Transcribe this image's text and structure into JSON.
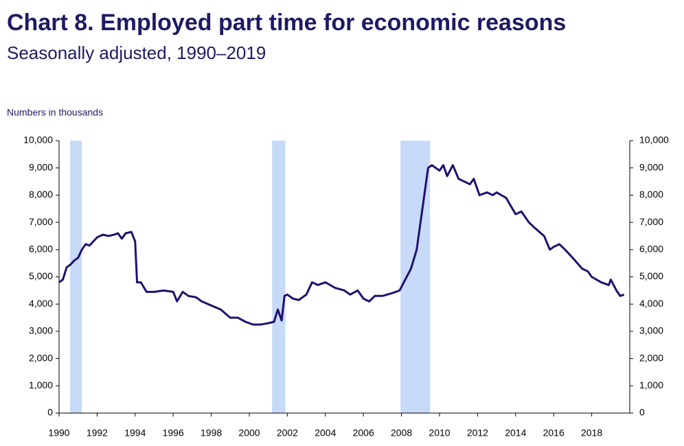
{
  "chart_data": {
    "type": "line",
    "title": "Chart 8. Employed part time for economic reasons",
    "subtitle": "Seasonally adjusted, 1990–2019",
    "y_label": "Numbers in thousands",
    "xlim": [
      1990,
      2020
    ],
    "xticks": [
      1990,
      1992,
      1994,
      1996,
      1998,
      2000,
      2002,
      2004,
      2006,
      2008,
      2010,
      2012,
      2014,
      2016,
      2018
    ],
    "ylim": [
      0,
      10000
    ],
    "yticks": [
      0,
      {
        "value": 1000,
        "label": "1,000"
      },
      {
        "value": 2000,
        "label": "2,000"
      },
      {
        "value": 3000,
        "label": "3,000"
      },
      {
        "value": 4000,
        "label": "4,000"
      },
      {
        "value": 5000,
        "label": "5,000"
      },
      {
        "value": 6000,
        "label": "6,000"
      },
      {
        "value": 7000,
        "label": "7,000"
      },
      {
        "value": 8000,
        "label": "8,000"
      },
      {
        "value": 9000,
        "label": "9,000"
      },
      {
        "value": 10000,
        "label": "10,000"
      }
    ],
    "y2lim": [
      0,
      10000
    ],
    "y2ticks": [
      0,
      {
        "value": 1000,
        "label": "1,000"
      },
      {
        "value": 2000,
        "label": "2,000"
      },
      {
        "value": 3000,
        "label": "3,000"
      },
      {
        "value": 4000,
        "label": "4,000"
      },
      {
        "value": 5000,
        "label": "5,000"
      },
      {
        "value": 6000,
        "label": "6,000"
      },
      {
        "value": 7000,
        "label": "7,000"
      },
      {
        "value": 8000,
        "label": "8,000"
      },
      {
        "value": 9000,
        "label": "9,000"
      },
      {
        "value": 10000,
        "label": "10,000"
      }
    ],
    "recessions": [
      [
        1990.58,
        1991.2
      ],
      [
        2001.2,
        2001.9
      ],
      [
        2007.95,
        2009.5
      ]
    ],
    "recession_color": "#c7daf8",
    "series": [
      {
        "color": "#1f0f6e",
        "x": [
          1990.0,
          1990.2,
          1990.4,
          1990.6,
          1990.8,
          1991.0,
          1991.2,
          1991.4,
          1991.6,
          1991.8,
          1992.0,
          1992.3,
          1992.6,
          1992.9,
          1993.1,
          1993.3,
          1993.5,
          1993.8,
          1994.0,
          1994.1,
          1994.3,
          1994.6,
          1995.0,
          1995.5,
          1996.0,
          1996.2,
          1996.5,
          1996.8,
          1997.2,
          1997.5,
          1998.0,
          1998.5,
          1999.0,
          1999.4,
          1999.8,
          2000.2,
          2000.6,
          2001.0,
          2001.3,
          2001.5,
          2001.7,
          2001.85,
          2002.0,
          2002.3,
          2002.6,
          2003.0,
          2003.3,
          2003.6,
          2004.0,
          2004.5,
          2005.0,
          2005.3,
          2005.7,
          2006.0,
          2006.3,
          2006.6,
          2007.0,
          2007.5,
          2007.9,
          2008.2,
          2008.5,
          2008.8,
          2009.0,
          2009.2,
          2009.4,
          2009.6,
          2010.0,
          2010.2,
          2010.4,
          2010.7,
          2011.0,
          2011.3,
          2011.6,
          2011.8,
          2012.1,
          2012.5,
          2012.8,
          2013.0,
          2013.5,
          2014.0,
          2014.3,
          2014.7,
          2015.0,
          2015.5,
          2015.8,
          2016.0,
          2016.3,
          2016.6,
          2017.0,
          2017.5,
          2017.8,
          2018.0,
          2018.5,
          2018.9,
          2019.0,
          2019.3,
          2019.5,
          2019.7
        ],
        "values": [
          4800,
          4900,
          5350,
          5450,
          5600,
          5700,
          6000,
          6200,
          6150,
          6300,
          6450,
          6550,
          6500,
          6550,
          6600,
          6400,
          6600,
          6650,
          6300,
          4800,
          4800,
          4450,
          4450,
          4500,
          4450,
          4100,
          4450,
          4300,
          4250,
          4100,
          3950,
          3800,
          3500,
          3500,
          3350,
          3250,
          3250,
          3300,
          3350,
          3800,
          3400,
          4300,
          4350,
          4200,
          4150,
          4350,
          4800,
          4700,
          4800,
          4600,
          4500,
          4350,
          4500,
          4200,
          4100,
          4300,
          4300,
          4400,
          4500,
          4900,
          5300,
          6000,
          7000,
          8000,
          9000,
          9100,
          8900,
          9100,
          8700,
          9100,
          8600,
          8500,
          8400,
          8600,
          8000,
          8100,
          8000,
          8100,
          7900,
          7300,
          7400,
          7000,
          6800,
          6500,
          6000,
          6100,
          6200,
          6000,
          5700,
          5300,
          5200,
          5000,
          4800,
          4700,
          4900,
          4500,
          4300,
          4350
        ]
      }
    ]
  }
}
